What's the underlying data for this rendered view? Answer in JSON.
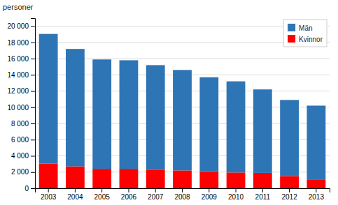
{
  "chart_data": {
    "type": "bar",
    "y_label": "personer",
    "categories": [
      "2003",
      "2004",
      "2005",
      "2006",
      "2007",
      "2008",
      "2009",
      "2010",
      "2011",
      "2012",
      "2013"
    ],
    "series": [
      {
        "name": "Kvinnor",
        "color": "#FF0000",
        "values": [
          3050,
          2700,
          2400,
          2400,
          2300,
          2200,
          2000,
          1950,
          1900,
          1500,
          1100
        ]
      },
      {
        "name": "Män",
        "color": "#2E75B6",
        "values": [
          16000,
          14500,
          13500,
          13400,
          12900,
          12400,
          11700,
          11250,
          10300,
          9400,
          9100
        ]
      }
    ],
    "stacked": true,
    "ylim": [
      0,
      21000
    ],
    "yticks": [
      0,
      {
        "value": 2000,
        "label": "2 000"
      },
      {
        "value": 4000,
        "label": "4 000"
      },
      {
        "value": 6000,
        "label": "6 000"
      },
      {
        "value": 8000,
        "label": "8 000"
      },
      {
        "value": 10000,
        "label": "10 000"
      },
      {
        "value": 12000,
        "label": "12 000"
      },
      {
        "value": 14000,
        "label": "14 000"
      },
      {
        "value": 16000,
        "label": "16 000"
      },
      {
        "value": 18000,
        "label": "18 000"
      },
      {
        "value": 20000,
        "label": "20 000"
      }
    ],
    "grid": true,
    "legend": "upper right"
  }
}
